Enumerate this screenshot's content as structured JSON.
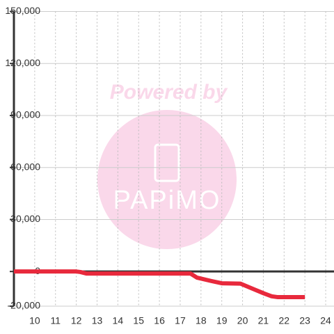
{
  "chart_data": {
    "type": "line",
    "annotations": [
      "Powered by",
      "PAPiMO"
    ],
    "x": [
      9,
      12,
      12.2,
      12.5,
      17.5,
      17.8,
      18.5,
      19,
      19.9,
      20.2,
      20.6,
      21,
      21.4,
      21.7,
      23
    ],
    "series": [
      {
        "color": "#e8293c",
        "values": [
          0,
          0,
          -300,
          -1200,
          -1200,
          -3500,
          -5500,
          -6800,
          -7000,
          -8500,
          -10500,
          -12500,
          -14300,
          -14800,
          -14800
        ]
      }
    ],
    "xlim": [
      9,
      24.4
    ],
    "xticks": [
      10,
      11,
      12,
      13,
      14,
      15,
      16,
      17,
      18,
      19,
      20,
      21,
      22,
      23,
      24
    ],
    "ylim": [
      -20000,
      150000
    ],
    "yticks": [
      {
        "value": -20000,
        "label": "-20,000"
      },
      0,
      {
        "value": 30000,
        "label": "30,000"
      },
      {
        "value": 60000,
        "label": "60,000"
      },
      {
        "value": 90000,
        "label": "90,000"
      },
      {
        "value": 120000,
        "label": "120,000"
      },
      {
        "value": 150000,
        "label": "150,000"
      }
    ],
    "grid": true
  }
}
